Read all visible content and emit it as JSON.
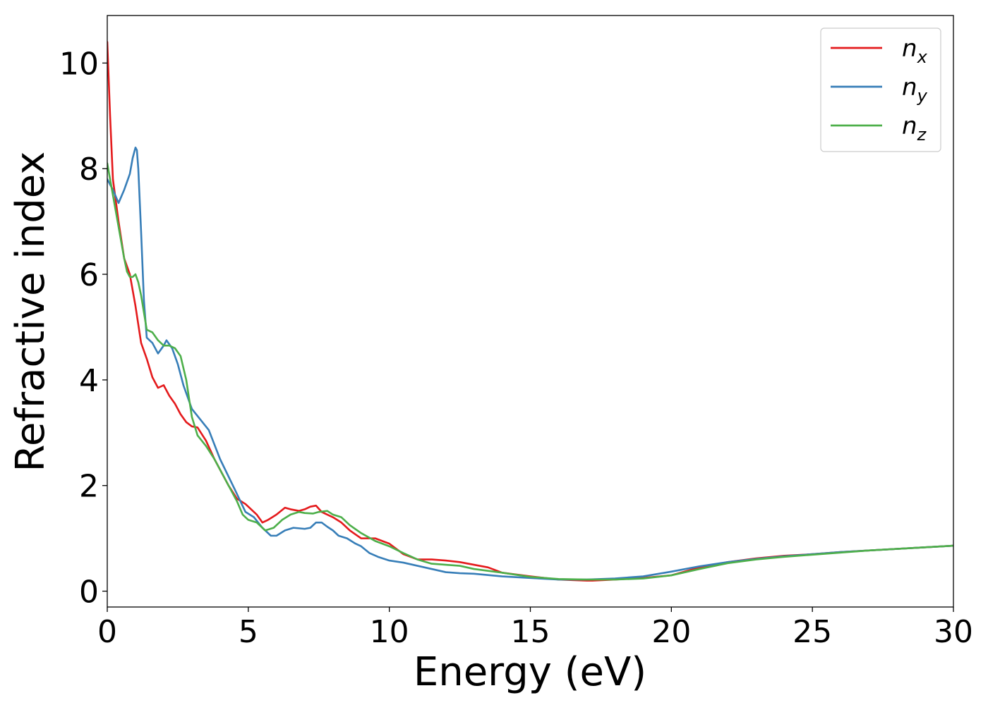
{
  "chart_data": {
    "type": "line",
    "xlabel": "Energy (eV)",
    "ylabel": "Refractive index",
    "xlim": [
      0,
      30
    ],
    "ylim": [
      -0.3,
      10.9
    ],
    "xticks": [
      0,
      5,
      10,
      15,
      20,
      25,
      30
    ],
    "yticks": [
      0,
      2,
      4,
      6,
      8,
      10
    ],
    "xtick_labels": [
      "0",
      "5",
      "10",
      "15",
      "20",
      "25",
      "30"
    ],
    "ytick_labels": [
      "0",
      "2",
      "4",
      "6",
      "8",
      "10"
    ],
    "grid": false,
    "legend_position": "top-right",
    "series": [
      {
        "name": "n_x",
        "label_main": "n",
        "label_sub": "x",
        "color": "#e41a1c",
        "x": [
          0,
          0.1,
          0.2,
          0.4,
          0.6,
          0.8,
          1.0,
          1.2,
          1.4,
          1.6,
          1.8,
          2.0,
          2.2,
          2.4,
          2.6,
          2.8,
          3.0,
          3.2,
          3.5,
          3.8,
          4.0,
          4.3,
          4.6,
          4.9,
          5.1,
          5.3,
          5.5,
          5.7,
          6.0,
          6.3,
          6.5,
          6.8,
          7.0,
          7.2,
          7.4,
          7.6,
          7.8,
          8.0,
          8.3,
          8.6,
          9.0,
          9.5,
          10.0,
          10.5,
          11.0,
          11.5,
          12.0,
          12.5,
          13.0,
          13.5,
          14.0,
          15.0,
          16.0,
          17.0,
          17.2,
          18.0,
          19.0,
          20.0,
          21.0,
          22.0,
          23.0,
          24.0,
          25.0,
          26.0,
          27.0,
          28.0,
          29.0,
          30.0
        ],
        "y": [
          10.4,
          9.0,
          7.8,
          7.0,
          6.3,
          6.0,
          5.4,
          4.7,
          4.4,
          4.05,
          3.85,
          3.9,
          3.7,
          3.55,
          3.35,
          3.2,
          3.12,
          3.1,
          2.85,
          2.5,
          2.3,
          2.0,
          1.75,
          1.65,
          1.55,
          1.45,
          1.3,
          1.35,
          1.45,
          1.58,
          1.55,
          1.52,
          1.55,
          1.6,
          1.62,
          1.5,
          1.45,
          1.4,
          1.3,
          1.15,
          1.0,
          1.0,
          0.9,
          0.7,
          0.6,
          0.6,
          0.58,
          0.55,
          0.5,
          0.45,
          0.35,
          0.28,
          0.22,
          0.2,
          0.2,
          0.22,
          0.25,
          0.3,
          0.45,
          0.55,
          0.62,
          0.67,
          0.7,
          0.74,
          0.77,
          0.8,
          0.83,
          0.86
        ]
      },
      {
        "name": "n_y",
        "label_main": "n",
        "label_sub": "y",
        "color": "#377eb8",
        "x": [
          0,
          0.2,
          0.4,
          0.6,
          0.8,
          0.9,
          1.0,
          1.05,
          1.1,
          1.2,
          1.3,
          1.4,
          1.6,
          1.8,
          2.0,
          2.1,
          2.3,
          2.5,
          2.7,
          3.0,
          3.3,
          3.6,
          4.0,
          4.5,
          4.9,
          5.2,
          5.5,
          5.8,
          6.0,
          6.3,
          6.6,
          7.0,
          7.2,
          7.4,
          7.6,
          7.8,
          8.0,
          8.2,
          8.5,
          8.8,
          9.0,
          9.3,
          9.6,
          10.0,
          10.5,
          11.0,
          11.5,
          12.0,
          12.5,
          13.0,
          14.0,
          15.0,
          16.0,
          17.0,
          18.0,
          19.0,
          20.0,
          21.0,
          22.0,
          23.0,
          24.0,
          25.0,
          26.0,
          27.0,
          28.0,
          29.0,
          30.0
        ],
        "y": [
          7.8,
          7.6,
          7.35,
          7.6,
          7.9,
          8.2,
          8.4,
          8.35,
          8.0,
          6.8,
          5.5,
          4.8,
          4.7,
          4.5,
          4.65,
          4.75,
          4.6,
          4.3,
          3.9,
          3.45,
          3.25,
          3.05,
          2.5,
          1.95,
          1.5,
          1.4,
          1.2,
          1.05,
          1.05,
          1.15,
          1.2,
          1.18,
          1.2,
          1.3,
          1.3,
          1.22,
          1.15,
          1.05,
          1.0,
          0.9,
          0.85,
          0.72,
          0.65,
          0.58,
          0.54,
          0.48,
          0.42,
          0.36,
          0.34,
          0.33,
          0.28,
          0.25,
          0.22,
          0.22,
          0.24,
          0.28,
          0.37,
          0.47,
          0.55,
          0.61,
          0.66,
          0.7,
          0.74,
          0.77,
          0.8,
          0.83,
          0.86
        ]
      },
      {
        "name": "n_z",
        "label_main": "n",
        "label_sub": "z",
        "color": "#4daf4a",
        "x": [
          0,
          0.1,
          0.2,
          0.4,
          0.6,
          0.7,
          0.8,
          0.9,
          1.0,
          1.1,
          1.2,
          1.4,
          1.6,
          1.8,
          2.0,
          2.2,
          2.4,
          2.6,
          2.8,
          3.0,
          3.2,
          3.5,
          3.8,
          4.0,
          4.3,
          4.6,
          4.8,
          5.0,
          5.3,
          5.6,
          5.9,
          6.2,
          6.5,
          6.8,
          7.0,
          7.3,
          7.5,
          7.8,
          8.0,
          8.3,
          8.6,
          9.0,
          9.5,
          10.0,
          10.5,
          11.0,
          11.5,
          12.0,
          12.5,
          13.0,
          14.0,
          15.0,
          16.0,
          17.0,
          18.0,
          19.0,
          20.0,
          21.0,
          22.0,
          23.0,
          24.0,
          25.0,
          26.0,
          27.0,
          28.0,
          29.0,
          30.0
        ],
        "y": [
          8.1,
          7.8,
          7.5,
          6.9,
          6.3,
          6.05,
          5.95,
          5.95,
          6.0,
          5.85,
          5.6,
          4.95,
          4.9,
          4.75,
          4.65,
          4.65,
          4.6,
          4.45,
          4.0,
          3.3,
          2.95,
          2.75,
          2.5,
          2.3,
          2.0,
          1.7,
          1.45,
          1.35,
          1.3,
          1.15,
          1.2,
          1.35,
          1.45,
          1.5,
          1.48,
          1.47,
          1.5,
          1.52,
          1.45,
          1.4,
          1.25,
          1.1,
          0.95,
          0.85,
          0.72,
          0.6,
          0.52,
          0.5,
          0.48,
          0.42,
          0.35,
          0.27,
          0.23,
          0.22,
          0.22,
          0.24,
          0.3,
          0.42,
          0.53,
          0.6,
          0.65,
          0.69,
          0.73,
          0.77,
          0.8,
          0.83,
          0.86
        ]
      }
    ]
  }
}
